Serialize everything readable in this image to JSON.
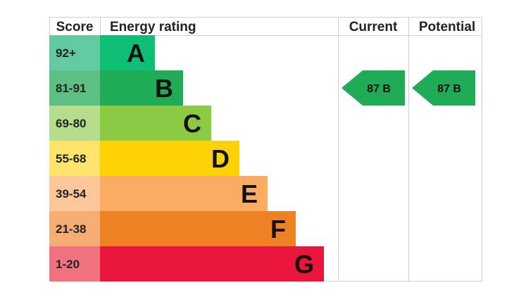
{
  "headers": {
    "score": "Score",
    "energy_rating": "Energy rating",
    "current": "Current",
    "potential": "Potential"
  },
  "chart_data": {
    "type": "bar",
    "title": "",
    "bands": [
      {
        "score": "92+",
        "letter": "A",
        "bar_color": "#0fbf75",
        "score_color": "#62c9a0"
      },
      {
        "score": "81-91",
        "letter": "B",
        "bar_color": "#20ab57",
        "score_color": "#5cc084"
      },
      {
        "score": "69-80",
        "letter": "C",
        "bar_color": "#8dca43",
        "score_color": "#b6de8a"
      },
      {
        "score": "55-68",
        "letter": "D",
        "bar_color": "#fed204",
        "score_color": "#fee46a"
      },
      {
        "score": "39-54",
        "letter": "E",
        "bar_color": "#fcab63",
        "score_color": "#fdc79a"
      },
      {
        "score": "21-38",
        "letter": "F",
        "bar_color": "#ef8125",
        "score_color": "#f6ad74"
      },
      {
        "score": "1-20",
        "letter": "G",
        "bar_color": "#e9153b",
        "score_color": "#f0727f"
      }
    ],
    "current": {
      "value": 87,
      "band": "B",
      "label": "87 B",
      "color": "#20ab57"
    },
    "potential": {
      "value": 87,
      "band": "B",
      "label": "87 B",
      "color": "#20ab57"
    }
  }
}
